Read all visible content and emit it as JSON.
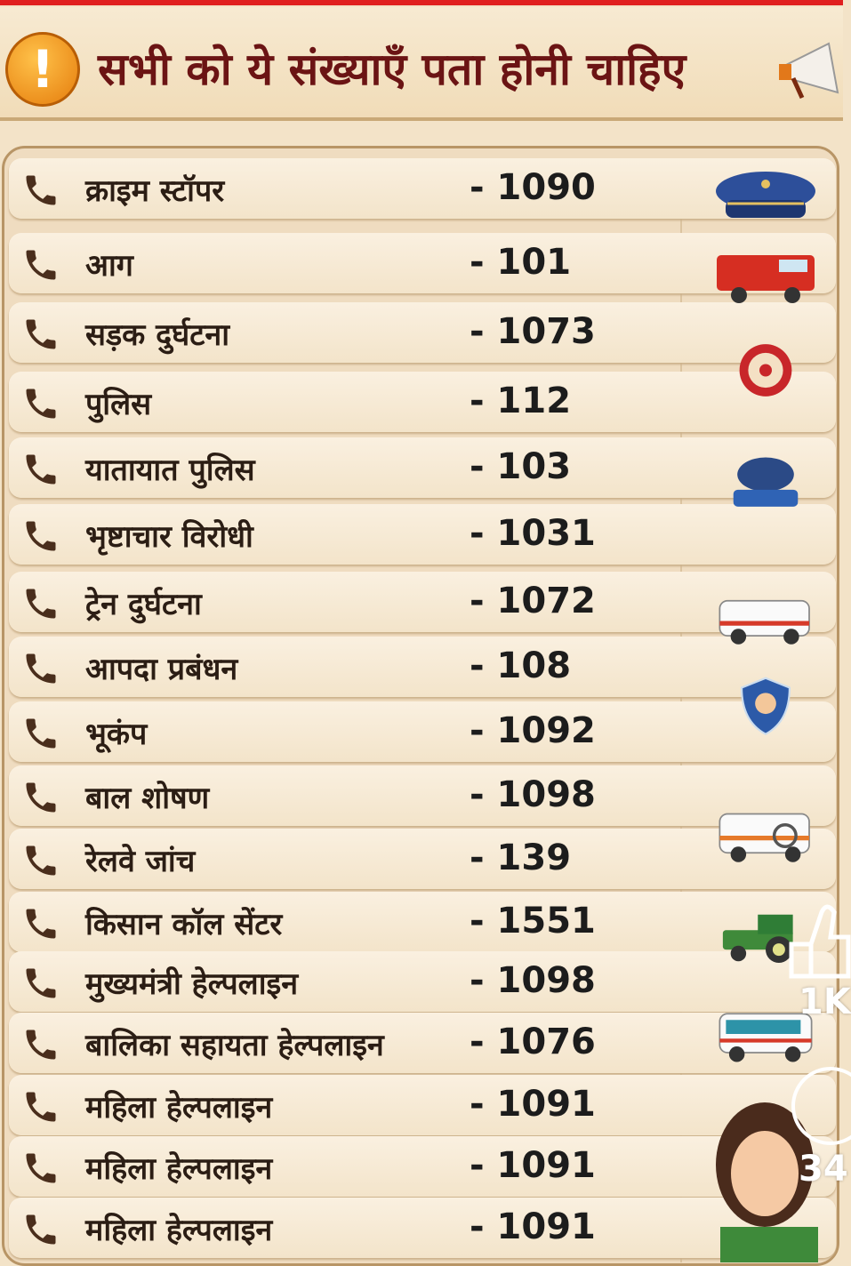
{
  "header": {
    "title": "सभी को ये संख्याएँ पता होनी चाहिए",
    "warning_icon": "exclamation-icon",
    "megaphone_icon": "megaphone-icon"
  },
  "rows": [
    {
      "name": "क्राइम स्टॉपर",
      "number": "- 1090"
    },
    {
      "name": "आग",
      "number": "- 101"
    },
    {
      "name": "सड़क दुर्घटना",
      "number": "- 1073"
    },
    {
      "name": "पुलिस",
      "number": "- 112"
    },
    {
      "name": "यातायात पुलिस",
      "number": "- 103"
    },
    {
      "name": "भृष्टाचार विरोधी",
      "number": "- 1031"
    },
    {
      "name": "ट्रेन दुर्घटना",
      "number": "- 1072"
    },
    {
      "name": "आपदा प्रबंधन",
      "number": "- 108"
    },
    {
      "name": "भूकंप",
      "number": "- 1092"
    },
    {
      "name": "बाल शोषण",
      "number": "- 1098"
    },
    {
      "name": "रेलवे जांच",
      "number": "- 139"
    },
    {
      "name": "किसान कॉल सेंटर",
      "number": "- 1551"
    },
    {
      "name": "मुख्यमंत्री हेल्पलाइन",
      "number": "- 1098"
    },
    {
      "name": "बालिका सहायता हेल्पलाइन",
      "number": "- 1076"
    },
    {
      "name": "महिला हेल्पलाइन",
      "number": "- 1091"
    },
    {
      "name": "महिला हेल्पलाइन",
      "number": "- 1091"
    },
    {
      "name": "महिला हेल्पलाइन",
      "number": "- 1091"
    }
  ],
  "pictures": [
    "police-cap-icon",
    "fire-truck-icon",
    "emblem-badge-icon",
    "whistle-badge-icon",
    "ambulance-icon",
    "women-shield-icon",
    "ambulance-search-icon",
    "tractor-icon",
    "ambulance-van-icon",
    "helpline-woman-icon"
  ],
  "overlay": {
    "like_count": "1K",
    "comment_count": "34"
  },
  "colors": {
    "title": "#6b1414",
    "accent_bar": "#e01f1f",
    "background": "#f3e3c8"
  }
}
